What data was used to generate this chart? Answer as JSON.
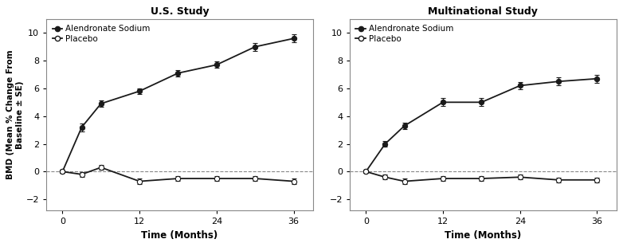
{
  "us_study": {
    "title": "U.S. Study",
    "alendronate_x": [
      0,
      3,
      6,
      12,
      18,
      24,
      30,
      36
    ],
    "alendronate_y": [
      0.0,
      3.2,
      4.9,
      5.8,
      7.1,
      7.7,
      9.0,
      9.6
    ],
    "alendronate_se": [
      0.12,
      0.28,
      0.22,
      0.22,
      0.22,
      0.22,
      0.28,
      0.28
    ],
    "placebo_x": [
      0,
      3,
      6,
      12,
      18,
      24,
      30,
      36
    ],
    "placebo_y": [
      0.0,
      -0.2,
      0.3,
      -0.7,
      -0.5,
      -0.5,
      -0.5,
      -0.7
    ],
    "placebo_se": [
      0.12,
      0.18,
      0.18,
      0.18,
      0.18,
      0.18,
      0.18,
      0.18
    ]
  },
  "multi_study": {
    "title": "Multinational Study",
    "alendronate_x": [
      0,
      3,
      6,
      12,
      18,
      24,
      30,
      36
    ],
    "alendronate_y": [
      0.0,
      2.0,
      3.3,
      5.0,
      5.0,
      6.2,
      6.5,
      6.7
    ],
    "alendronate_se": [
      0.12,
      0.22,
      0.25,
      0.28,
      0.28,
      0.28,
      0.28,
      0.28
    ],
    "placebo_x": [
      0,
      3,
      6,
      12,
      18,
      24,
      30,
      36
    ],
    "placebo_y": [
      0.0,
      -0.4,
      -0.7,
      -0.5,
      -0.5,
      -0.4,
      -0.6,
      -0.6
    ],
    "placebo_se": [
      0.12,
      0.18,
      0.18,
      0.18,
      0.18,
      0.18,
      0.18,
      0.18
    ]
  },
  "ylabel": "BMD (Mean % Change From\nBaseline ± SE)",
  "xlabel": "Time (Months)",
  "ylim": [
    -2.8,
    11.0
  ],
  "xlim": [
    -2.5,
    39
  ],
  "yticks": [
    -2,
    0,
    2,
    4,
    6,
    8,
    10
  ],
  "xticks": [
    0,
    12,
    24,
    36
  ],
  "legend_alendronate": "Alendronate Sodium",
  "legend_placebo": "Placebo",
  "line_color": "#1a1a1a",
  "background_color": "#ffffff",
  "plot_bg_color": "#ffffff",
  "box_color": "#888888"
}
